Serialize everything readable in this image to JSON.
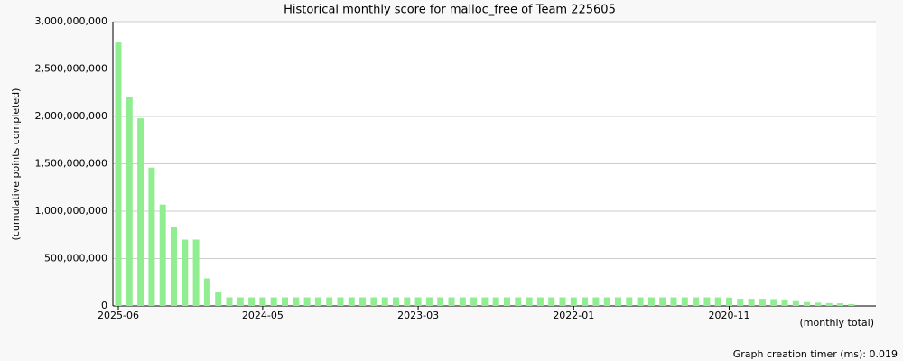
{
  "chart_data": {
    "type": "bar",
    "title": "Historical monthly score for malloc_free of Team 225605",
    "y_label": "(cumulative points completed)",
    "x_note": "(monthly total)",
    "footer": "Graph creation timer (ms): 0.019",
    "color": "#90ee90",
    "grid": true,
    "categories": [
      "2025-06",
      null,
      null,
      null,
      null,
      null,
      null,
      null,
      null,
      null,
      null,
      null,
      null,
      "2024-05",
      null,
      null,
      null,
      null,
      null,
      null,
      null,
      null,
      null,
      null,
      null,
      null,
      null,
      "2023-03",
      null,
      null,
      null,
      null,
      null,
      null,
      null,
      null,
      null,
      null,
      null,
      null,
      null,
      "2022-01",
      null,
      null,
      null,
      null,
      null,
      null,
      null,
      null,
      null,
      null,
      null,
      null,
      null,
      "2020-11",
      null,
      null,
      null,
      null,
      null,
      null,
      null,
      null,
      null,
      null,
      null
    ],
    "values": [
      2780000000,
      2210000000,
      1980000000,
      1460000000,
      1070000000,
      830000000,
      700000000,
      700000000,
      290000000,
      150000000,
      90000000,
      90000000,
      90000000,
      90000000,
      90000000,
      90000000,
      90000000,
      90000000,
      90000000,
      90000000,
      90000000,
      90000000,
      90000000,
      90000000,
      90000000,
      90000000,
      90000000,
      90000000,
      90000000,
      90000000,
      90000000,
      90000000,
      90000000,
      90000000,
      90000000,
      90000000,
      90000000,
      90000000,
      90000000,
      90000000,
      90000000,
      90000000,
      90000000,
      90000000,
      90000000,
      90000000,
      90000000,
      90000000,
      90000000,
      90000000,
      90000000,
      90000000,
      90000000,
      90000000,
      90000000,
      88000000,
      75000000,
      75000000,
      75000000,
      72000000,
      68000000,
      60000000,
      40000000,
      35000000,
      30000000,
      28000000,
      20000000
    ],
    "ylim": [
      0,
      3000000000
    ],
    "yticks": [
      0,
      {
        "value": 500000000,
        "label": "500,000,000"
      },
      {
        "value": 1000000000,
        "label": "1,000,000,000"
      },
      {
        "value": 1500000000,
        "label": "1,500,000,000"
      },
      {
        "value": 2000000000,
        "label": "2,000,000,000"
      },
      {
        "value": 2500000000,
        "label": "2,500,000,000"
      },
      {
        "value": 3000000000,
        "label": "3,000,000,000"
      }
    ]
  }
}
